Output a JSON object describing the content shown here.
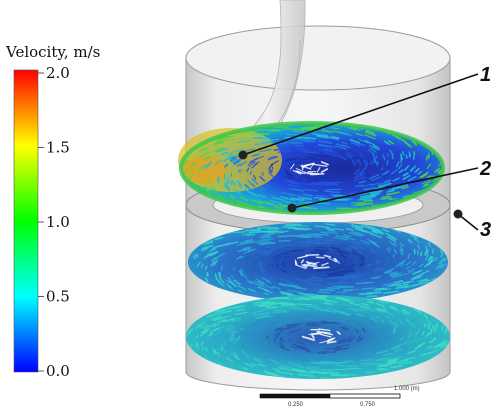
{
  "legend": {
    "title": "Velocity, m/s",
    "ticks": [
      "2.0",
      "1.5",
      "1.0",
      "0.5",
      "0.0"
    ],
    "colors": [
      "#ff0000",
      "#ffff00",
      "#00ff00",
      "#00ffff",
      "#0000ff"
    ]
  },
  "callouts": [
    "1",
    "2",
    "3"
  ],
  "scale_bar": {
    "labels": [
      "0.250",
      "0.750"
    ],
    "end_label": "1.000 (m)"
  },
  "palette": {
    "outline": "#999999",
    "glass": "#e2e2e2",
    "pipe": "#cfcfcf"
  }
}
